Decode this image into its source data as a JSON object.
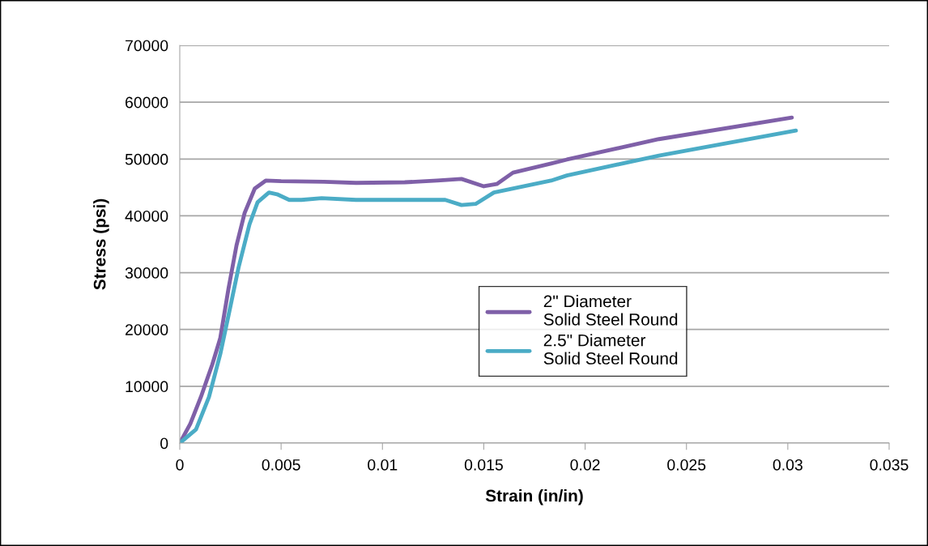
{
  "chart_data": {
    "type": "line",
    "xlabel": "Strain (in/in)",
    "ylabel": "Stress (psi)",
    "xlim": [
      0,
      0.035
    ],
    "xticks": [
      0,
      0.005,
      0.01,
      0.015,
      0.02,
      0.025,
      0.03,
      0.035
    ],
    "ylim": [
      0,
      70000
    ],
    "yticks": [
      0,
      10000,
      20000,
      30000,
      40000,
      50000,
      60000,
      70000
    ],
    "grid": "y",
    "legend": "center",
    "marker": "none",
    "line_style": "solid",
    "series": [
      {
        "name": "2\" Diameter\nSolid Steel Round",
        "color": "#7f60a8",
        "x": [
          0,
          0.00052,
          0.00104,
          0.0016,
          0.002,
          0.0024,
          0.0028,
          0.0032,
          0.0037,
          0.00424,
          0.005,
          0.00712,
          0.0087,
          0.0111,
          0.0127,
          0.0139,
          0.015,
          0.01564,
          0.01644,
          0.01832,
          0.0191,
          0.02364,
          0.0302
        ],
        "values": [
          0,
          3400,
          8100,
          13800,
          18500,
          27100,
          34800,
          40500,
          44800,
          46200,
          46100,
          46000,
          45800,
          45900,
          46200,
          46500,
          45200,
          45600,
          47600,
          49200,
          49900,
          53500,
          57300
        ]
      },
      {
        "name": "2.5\" Diameter\nSolid Steel Round",
        "color": "#4bacc6",
        "x": [
          0,
          0.0008,
          0.00144,
          0.002,
          0.0024,
          0.0029,
          0.00344,
          0.00384,
          0.0044,
          0.0048,
          0.0054,
          0.006,
          0.007,
          0.0087,
          0.0111,
          0.0131,
          0.0139,
          0.0146,
          0.0155,
          0.01832,
          0.0191,
          0.02364,
          0.0304
        ],
        "values": [
          0,
          2400,
          8100,
          15700,
          22400,
          30900,
          38500,
          42400,
          44100,
          43800,
          42800,
          42800,
          43100,
          42800,
          42800,
          42800,
          41900,
          42100,
          44100,
          46200,
          47100,
          50600,
          55000
        ]
      }
    ]
  }
}
